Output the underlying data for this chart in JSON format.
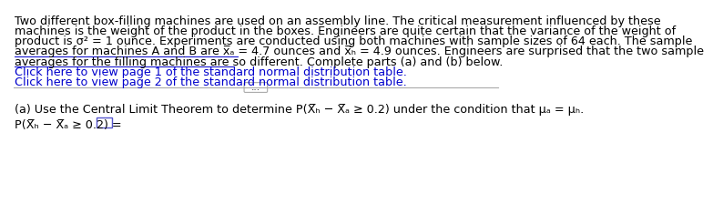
{
  "bg_color": "#ffffff",
  "text_color": "#000000",
  "link_color": "#0000cc",
  "font_size_body": 9.2,
  "line1": "Two different box-filling machines are used on an assembly line. The critical measurement influenced by these",
  "line2": "machines is the weight of the product in the boxes. Engineers are quite certain that the variance of the weight of",
  "line3": "product is σ² = 1 ounce. Experiments are conducted using both machines with sample sizes of 64 each. The sample",
  "line4": "averages for machines A and B are x̅ₐ = 4.7 ounces and x̅ₕ = 4.9 ounces. Engineers are surprised that the two sample",
  "line5": "averages for the filling machines are so different. Complete parts (a) and (b) below.",
  "link1": "Click here to view page 1 of the standard normal distribution table.",
  "link2": "Click here to view page 2 of the standard normal distribution table.",
  "divider_button_text": "...",
  "part_a_line": "(a) Use the Central Limit Theorem to determine P(X̅ₕ − X̅ₐ ≥ 0.2) under the condition that μₐ = μₕ.",
  "answer_line": "P(X̅ₕ − X̅ₐ ≥ 0.2) ="
}
